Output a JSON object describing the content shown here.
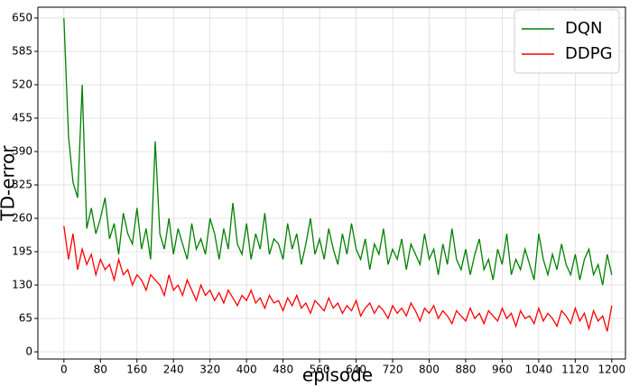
{
  "chart_data": {
    "type": "line",
    "xlabel": "episode",
    "ylabel": "TD-error",
    "x": [
      0,
      10,
      20,
      30,
      40,
      50,
      60,
      70,
      80,
      90,
      100,
      110,
      120,
      130,
      140,
      150,
      160,
      170,
      180,
      190,
      200,
      210,
      220,
      230,
      240,
      250,
      260,
      270,
      280,
      290,
      300,
      310,
      320,
      330,
      340,
      350,
      360,
      370,
      380,
      390,
      400,
      410,
      420,
      430,
      440,
      450,
      460,
      470,
      480,
      490,
      500,
      510,
      520,
      530,
      540,
      550,
      560,
      570,
      580,
      590,
      600,
      610,
      620,
      630,
      640,
      650,
      660,
      670,
      680,
      690,
      700,
      710,
      720,
      730,
      740,
      750,
      760,
      770,
      780,
      790,
      800,
      810,
      820,
      830,
      840,
      850,
      860,
      870,
      880,
      890,
      900,
      910,
      920,
      930,
      940,
      950,
      960,
      970,
      980,
      990,
      1000,
      1010,
      1020,
      1030,
      1040,
      1050,
      1060,
      1070,
      1080,
      1090,
      1100,
      1110,
      1120,
      1130,
      1140,
      1150,
      1160,
      1170,
      1180,
      1190,
      1200
    ],
    "series": [
      {
        "name": "DQN",
        "color": "#008000",
        "values": [
          650,
          420,
          330,
          300,
          520,
          240,
          280,
          230,
          260,
          300,
          220,
          250,
          190,
          270,
          230,
          210,
          280,
          200,
          240,
          180,
          410,
          230,
          200,
          260,
          190,
          240,
          210,
          180,
          250,
          200,
          220,
          190,
          260,
          230,
          180,
          240,
          200,
          290,
          210,
          190,
          250,
          180,
          230,
          200,
          270,
          190,
          220,
          210,
          180,
          250,
          200,
          230,
          170,
          210,
          260,
          190,
          220,
          180,
          240,
          200,
          170,
          230,
          190,
          250,
          200,
          180,
          220,
          160,
          210,
          190,
          240,
          170,
          200,
          180,
          220,
          160,
          210,
          190,
          170,
          230,
          180,
          200,
          150,
          210,
          170,
          240,
          180,
          160,
          200,
          150,
          190,
          220,
          160,
          180,
          140,
          200,
          170,
          230,
          150,
          180,
          160,
          200,
          170,
          140,
          230,
          180,
          150,
          190,
          160,
          210,
          170,
          150,
          190,
          140,
          180,
          200,
          150,
          170,
          130,
          190,
          150
        ]
      },
      {
        "name": "DDPG",
        "color": "#ff0000",
        "values": [
          245,
          180,
          230,
          160,
          200,
          170,
          190,
          150,
          180,
          160,
          170,
          140,
          180,
          150,
          160,
          130,
          150,
          140,
          120,
          150,
          140,
          130,
          110,
          150,
          120,
          130,
          110,
          140,
          120,
          100,
          130,
          110,
          120,
          100,
          115,
          95,
          120,
          105,
          90,
          110,
          100,
          120,
          95,
          105,
          85,
          110,
          95,
          100,
          80,
          105,
          90,
          110,
          85,
          95,
          75,
          100,
          90,
          80,
          105,
          85,
          95,
          75,
          90,
          80,
          100,
          70,
          85,
          95,
          75,
          90,
          80,
          65,
          90,
          75,
          85,
          70,
          95,
          80,
          60,
          85,
          75,
          90,
          65,
          80,
          70,
          55,
          80,
          70,
          60,
          85,
          65,
          75,
          55,
          80,
          70,
          60,
          85,
          65,
          75,
          50,
          80,
          65,
          70,
          55,
          85,
          60,
          75,
          65,
          50,
          80,
          70,
          55,
          85,
          60,
          75,
          45,
          80,
          60,
          70,
          40,
          90
        ]
      }
    ],
    "xlim": [
      -57,
      1230
    ],
    "ylim": [
      -14,
      671
    ],
    "xticks": [
      0,
      80,
      160,
      240,
      320,
      400,
      480,
      560,
      640,
      720,
      800,
      880,
      960,
      1040,
      1120,
      1200
    ],
    "yticks": [
      0,
      65,
      130,
      195,
      260,
      325,
      390,
      455,
      520,
      585,
      650
    ],
    "grid": true,
    "legend": "upper right"
  }
}
